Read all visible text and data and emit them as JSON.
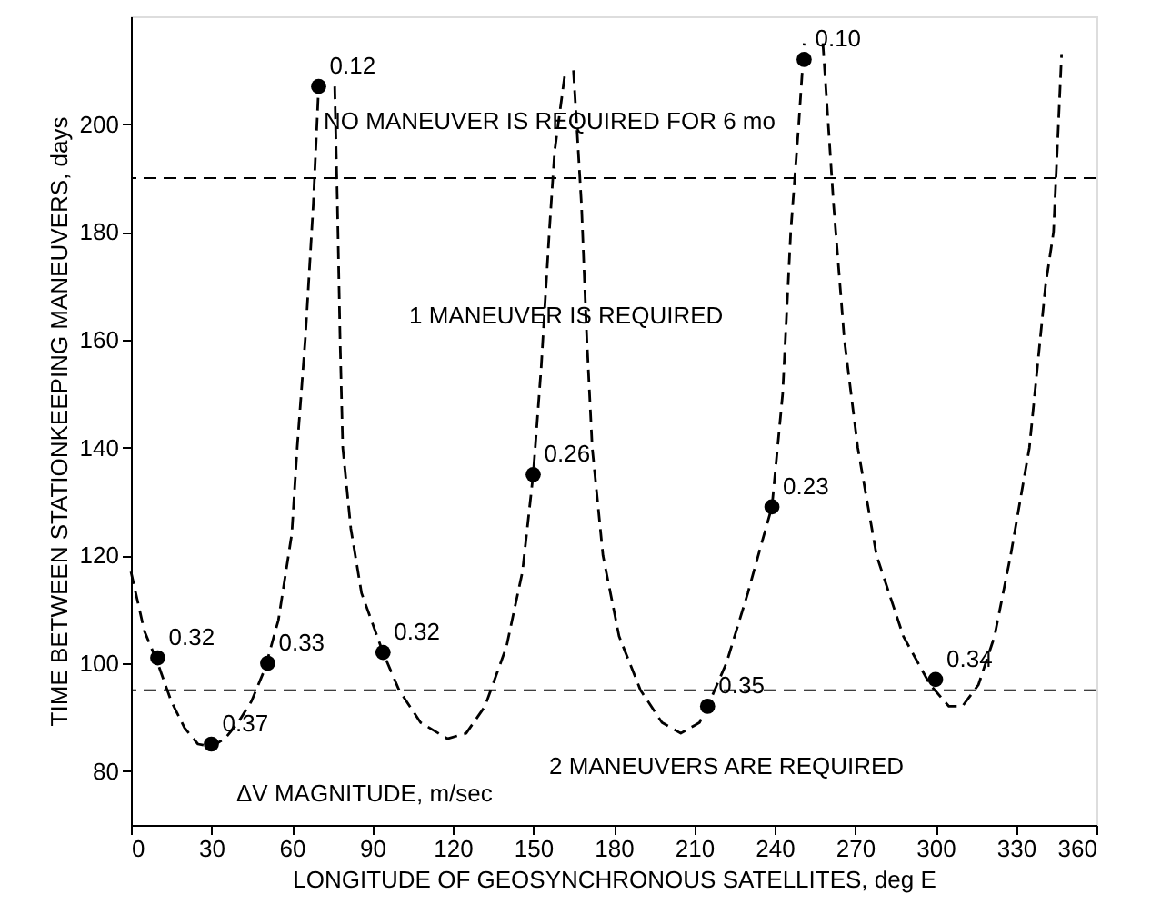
{
  "chart_data": {
    "type": "line",
    "xlabel": "LONGITUDE OF GEOSYNCHRONOUS SATELLITES, deg E",
    "ylabel": "TIME BETWEEN STATIONKEEPING MANEUVERS, days",
    "xlim": [
      0,
      360
    ],
    "xticks": [
      0,
      30,
      60,
      90,
      120,
      150,
      180,
      210,
      240,
      270,
      300,
      330,
      360
    ],
    "ylim": [
      70,
      220
    ],
    "yticks": [
      80,
      100,
      120,
      140,
      160,
      180,
      200
    ],
    "grid": false,
    "series": [
      {
        "color": "#000000",
        "line_style": "dashed",
        "marker": "none",
        "x": [
          0,
          5,
          10,
          15,
          20,
          25,
          30,
          35,
          40,
          45,
          50,
          55,
          60,
          62,
          65,
          68,
          70
        ],
        "values": [
          117,
          106,
          100,
          93,
          88,
          85,
          84.5,
          86,
          89,
          93,
          99,
          108,
          124,
          140,
          160,
          185,
          207
        ]
      },
      {
        "color": "#000000",
        "line_style": "dashed",
        "marker": "none",
        "x": [
          76,
          77,
          78,
          79,
          82,
          86,
          94,
          100,
          108,
          118,
          125,
          132,
          140,
          146,
          150,
          153,
          156,
          158,
          162
        ],
        "values": [
          207,
          185,
          160,
          140,
          125,
          113,
          102,
          95,
          89,
          86,
          87,
          92,
          103,
          117,
          135,
          155,
          180,
          195,
          210
        ]
      },
      {
        "color": "#000000",
        "line_style": "dashed",
        "marker": "none",
        "x": [
          165,
          168,
          170,
          172,
          176,
          182,
          190,
          198,
          205,
          212,
          215,
          222,
          230,
          235,
          239,
          243,
          246,
          249,
          251
        ],
        "values": [
          210,
          185,
          160,
          140,
          120,
          105,
          95,
          89,
          87,
          89,
          92,
          100,
          113,
          122,
          129,
          150,
          180,
          200,
          215
        ]
      },
      {
        "color": "#000000",
        "line_style": "dashed",
        "marker": "none",
        "x": [
          258,
          262,
          266,
          271,
          278,
          288,
          298,
          305,
          310,
          316,
          322,
          328,
          335,
          341,
          344,
          347
        ],
        "values": [
          215,
          185,
          160,
          140,
          120,
          105,
          96,
          92,
          92,
          96,
          105,
          120,
          140,
          170,
          180,
          213
        ]
      },
      {
        "type": "scatter",
        "color": "#000000",
        "marker": "circle",
        "x": [
          10,
          30,
          51,
          70,
          94,
          150,
          215,
          239,
          251,
          300
        ],
        "values": [
          101,
          85,
          100,
          207,
          102,
          135,
          92,
          129,
          212,
          97
        ]
      }
    ],
    "ref_lines": [
      {
        "axis": "y",
        "value": 190,
        "color": "#000000",
        "line_style": "dashed"
      },
      {
        "axis": "y",
        "value": 95,
        "color": "#000000",
        "line_style": "dashed"
      }
    ],
    "annotations": [
      {
        "text": "0.32",
        "x": 10,
        "y": 101
      },
      {
        "text": "0.37",
        "x": 30,
        "y": 85
      },
      {
        "text": "0.33",
        "x": 51,
        "y": 100
      },
      {
        "text": "0.12",
        "x": 70,
        "y": 207
      },
      {
        "text": "0.32",
        "x": 94,
        "y": 102
      },
      {
        "text": "0.26",
        "x": 150,
        "y": 135
      },
      {
        "text": "0.35",
        "x": 215,
        "y": 92
      },
      {
        "text": "0.23",
        "x": 239,
        "y": 129
      },
      {
        "text": "0.10",
        "x": 251,
        "y": 212
      },
      {
        "text": "0.34",
        "x": 300,
        "y": 97
      },
      "NO MANEUVER IS REQUIRED FOR 6 mo",
      "1 MANEUVER IS REQUIRED",
      "2 MANEUVERS ARE REQUIRED",
      "ΔV MAGNITUDE, m/sec"
    ]
  }
}
